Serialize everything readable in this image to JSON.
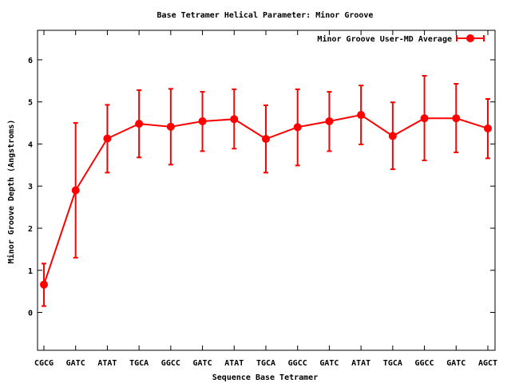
{
  "chart_data": {
    "type": "line",
    "title": "Base Tetramer Helical Parameter: Minor Groove",
    "xlabel": "Sequence Base Tetramer",
    "ylabel": "Minor Groove Depth (Angstroms)",
    "categories": [
      "CGCG",
      "GATC",
      "ATAT",
      "TGCA",
      "GGCC",
      "GATC",
      "ATAT",
      "TGCA",
      "GGCC",
      "GATC",
      "ATAT",
      "TGCA",
      "GGCC",
      "GATC",
      "AGCT"
    ],
    "ylim": [
      -0.9,
      6.7
    ],
    "yticks": [
      0,
      1,
      2,
      3,
      4,
      5,
      6
    ],
    "grid": false,
    "legend_position": "top-right",
    "series": [
      {
        "name": "Minor Groove User-MD Average",
        "color": "#ff0000",
        "values": [
          0.66,
          2.9,
          4.13,
          4.48,
          4.41,
          4.54,
          4.59,
          4.12,
          4.4,
          4.54,
          4.69,
          4.19,
          4.61,
          4.61,
          4.37
        ],
        "error_low": [
          0.15,
          1.3,
          3.32,
          3.68,
          3.51,
          3.83,
          3.89,
          3.32,
          3.49,
          3.83,
          3.99,
          3.4,
          3.61,
          3.8,
          3.66
        ],
        "error_high": [
          1.16,
          4.5,
          4.93,
          5.28,
          5.31,
          5.24,
          5.3,
          4.92,
          5.3,
          5.24,
          5.39,
          4.99,
          5.62,
          5.43,
          5.07
        ]
      }
    ]
  }
}
